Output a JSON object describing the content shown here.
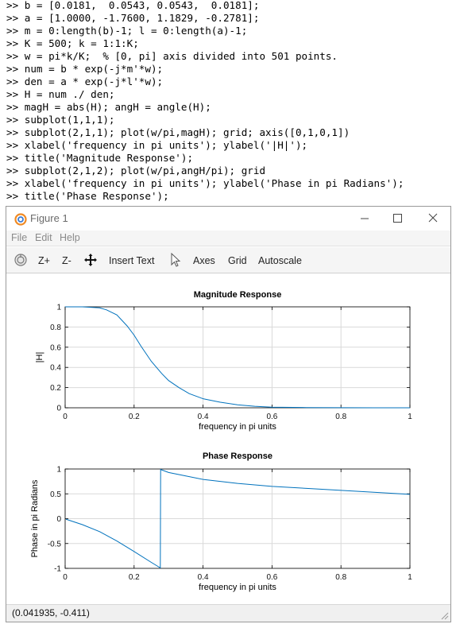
{
  "console": {
    "prompt": ">>",
    "lines": [
      "b = [0.0181,  0.0543, 0.0543,  0.0181];",
      "a = [1.0000, -1.7600, 1.1829, -0.2781];",
      "m = 0:length(b)-1; l = 0:length(a)-1;",
      "K = 500; k = 1:1:K;",
      "w = pi*k/K;  % [0, pi] axis divided into 501 points.",
      "num = b * exp(-j*m'*w);",
      "den = a * exp(-j*l'*w);",
      "H = num ./ den;",
      "magH = abs(H); angH = angle(H);",
      "subplot(1,1,1);",
      "subplot(2,1,1); plot(w/pi,magH); grid; axis([0,1,0,1])",
      "xlabel('frequency in pi units'); ylabel('|H|');",
      "title('Magnitude Response');",
      "subplot(2,1,2); plot(w/pi,angH/pi); grid",
      "xlabel('frequency in pi units'); ylabel('Phase in pi Radians');",
      "title('Phase Response');"
    ]
  },
  "window": {
    "title": "Figure 1",
    "controls": {
      "minimize": "minimize-icon",
      "maximize": "maximize-icon",
      "close": "close-icon"
    }
  },
  "menu": {
    "file": "File",
    "edit": "Edit",
    "help": "Help"
  },
  "toolbar": {
    "zoom_in": "Z+",
    "zoom_out": "Z-",
    "insert_text": "Insert Text",
    "axes": "Axes",
    "grid": "Grid",
    "autoscale": "Autoscale",
    "icons": [
      "rotate-icon",
      "pan-icon",
      "select-pointer-icon"
    ]
  },
  "status": {
    "coords": "(0.041935, -0.411)"
  },
  "colors": {
    "line": "#0072bd",
    "grid": "#d9d9d9",
    "axis": "#000000"
  },
  "chart_data": [
    {
      "type": "line",
      "title": "Magnitude Response",
      "xlabel": "frequency in pi units",
      "ylabel": "|H|",
      "xlim": [
        0,
        1
      ],
      "ylim": [
        0,
        1
      ],
      "grid": true,
      "xticks": [
        "0",
        "0.2",
        "0.4",
        "0.6",
        "0.8",
        "1"
      ],
      "yticks": [
        "0",
        "0.2",
        "0.4",
        "0.6",
        "0.8",
        "1"
      ],
      "x": [
        0,
        0.05,
        0.1,
        0.12,
        0.15,
        0.18,
        0.2,
        0.22,
        0.25,
        0.28,
        0.3,
        0.33,
        0.36,
        0.4,
        0.45,
        0.5,
        0.55,
        0.6,
        0.7,
        0.8,
        0.9,
        1.0
      ],
      "y": [
        1.0,
        1.0,
        0.99,
        0.97,
        0.92,
        0.81,
        0.72,
        0.61,
        0.46,
        0.34,
        0.27,
        0.2,
        0.14,
        0.09,
        0.055,
        0.03,
        0.015,
        0.006,
        0.002,
        0.0005,
        0.0001,
        0.0
      ]
    },
    {
      "type": "line",
      "title": "Phase Response",
      "xlabel": "frequency in pi units",
      "ylabel": "Phase in pi Radians",
      "xlim": [
        0,
        1
      ],
      "ylim": [
        -1,
        1
      ],
      "grid": true,
      "xticks": [
        "0",
        "0.2",
        "0.4",
        "0.6",
        "0.8",
        "1"
      ],
      "yticks": [
        "-1",
        "-0.5",
        "0",
        "0.5",
        "1"
      ],
      "yticks_values": [
        -1,
        -0.5,
        0,
        0.5,
        1
      ],
      "x": [
        0.002,
        0.05,
        0.1,
        0.15,
        0.2,
        0.25,
        0.276,
        0.277,
        0.3,
        0.35,
        0.4,
        0.5,
        0.6,
        0.7,
        0.8,
        0.9,
        1.0
      ],
      "y": [
        -0.01,
        -0.12,
        -0.26,
        -0.45,
        -0.66,
        -0.88,
        -0.99,
        0.99,
        0.93,
        0.86,
        0.79,
        0.71,
        0.65,
        0.61,
        0.57,
        0.53,
        0.49
      ]
    }
  ]
}
